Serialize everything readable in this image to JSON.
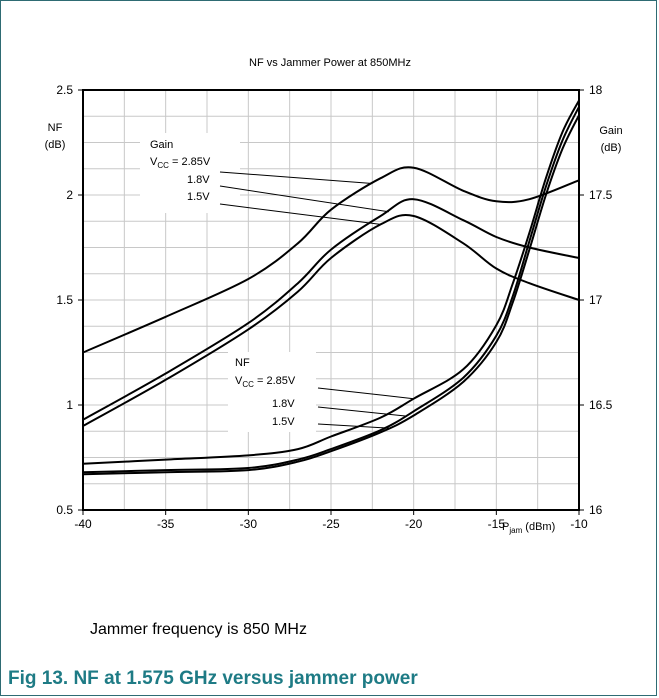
{
  "chart_data": {
    "type": "line",
    "title": "NF vs Jammer Power at 850MHz",
    "xlabel": "P_jam (dBm)",
    "xlabel_main": "P",
    "xlabel_sub": "jam",
    "xlabel_unit": " (dBm)",
    "xlim": [
      -40,
      -10
    ],
    "x_ticks": [
      "-40",
      "-35",
      "-30",
      "-25",
      "-20",
      "-15",
      "-10"
    ],
    "y_left": {
      "label_top": "NF",
      "label_bottom": "(dB)",
      "lim": [
        0.5,
        2.5
      ],
      "ticks": [
        "0.5",
        "1",
        "1.5",
        "2",
        "2.5"
      ]
    },
    "y_right": {
      "label_top": "Gain",
      "label_bottom": "(dB)",
      "lim": [
        16,
        18
      ],
      "ticks": [
        "16",
        "16.5",
        "17",
        "17.5",
        "18"
      ]
    },
    "grid": true,
    "legend_gain": {
      "title": "Gain",
      "entries": [
        "2.85V",
        "1.8V",
        "1.5V"
      ]
    },
    "legend_nf": {
      "title": "NF",
      "entries": [
        "2.85V",
        "1.8V",
        "1.5V"
      ]
    },
    "vcc_label": "V",
    "vcc_sub": "CC",
    "vcc_eq": " = ",
    "series": [
      {
        "name": "Gain 2.85V",
        "axis": "right",
        "x": [
          -40,
          -35,
          -30,
          -27,
          -25,
          -22,
          -20,
          -17,
          -15,
          -13,
          -10
        ],
        "y": [
          16.75,
          16.92,
          17.1,
          17.27,
          17.43,
          17.58,
          17.63,
          17.52,
          17.47,
          17.48,
          17.57
        ]
      },
      {
        "name": "Gain 1.8V",
        "axis": "right",
        "x": [
          -40,
          -35,
          -30,
          -27,
          -25,
          -22,
          -20,
          -17,
          -15,
          -13,
          -10
        ],
        "y": [
          16.43,
          16.65,
          16.89,
          17.08,
          17.24,
          17.4,
          17.48,
          17.38,
          17.3,
          17.25,
          17.2
        ]
      },
      {
        "name": "Gain 1.5V",
        "axis": "right",
        "x": [
          -40,
          -35,
          -30,
          -27,
          -25,
          -22,
          -20,
          -17,
          -15,
          -13,
          -10
        ],
        "y": [
          16.4,
          16.62,
          16.86,
          17.04,
          17.2,
          17.36,
          17.4,
          17.27,
          17.15,
          17.08,
          17.0
        ]
      },
      {
        "name": "NF 2.85V",
        "axis": "left",
        "x": [
          -40,
          -35,
          -30,
          -27,
          -25,
          -22,
          -20,
          -17,
          -15,
          -14,
          -13,
          -12,
          -11,
          -10
        ],
        "y": [
          0.72,
          0.74,
          0.76,
          0.79,
          0.85,
          0.94,
          1.03,
          1.17,
          1.38,
          1.58,
          1.82,
          2.08,
          2.3,
          2.45
        ]
      },
      {
        "name": "NF 1.8V",
        "axis": "left",
        "x": [
          -40,
          -35,
          -30,
          -27,
          -25,
          -22,
          -20,
          -17,
          -15,
          -14,
          -13,
          -12,
          -11,
          -10
        ],
        "y": [
          0.68,
          0.69,
          0.7,
          0.74,
          0.79,
          0.88,
          0.97,
          1.13,
          1.33,
          1.52,
          1.78,
          2.04,
          2.26,
          2.42
        ]
      },
      {
        "name": "NF 1.5V",
        "axis": "left",
        "x": [
          -40,
          -35,
          -30,
          -27,
          -25,
          -22,
          -20,
          -17,
          -15,
          -14,
          -13,
          -12,
          -11,
          -10
        ],
        "y": [
          0.67,
          0.68,
          0.69,
          0.73,
          0.78,
          0.87,
          0.95,
          1.11,
          1.3,
          1.49,
          1.74,
          2.0,
          2.22,
          2.38
        ]
      }
    ]
  },
  "footnote": "Jammer frequency is 850 MHz",
  "caption": "Fig 13. NF at 1.575 GHz versus jammer power"
}
